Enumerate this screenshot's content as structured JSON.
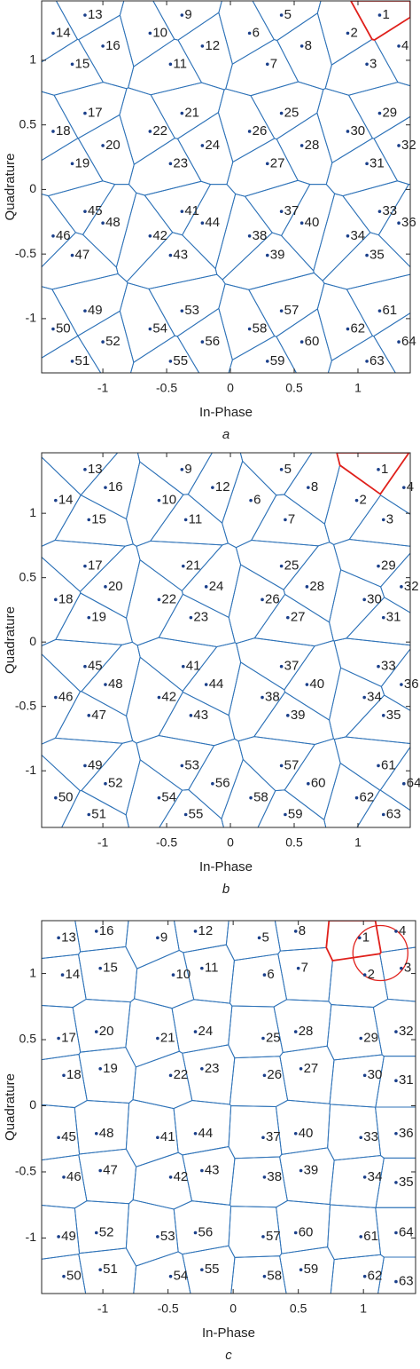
{
  "chart_data": [
    {
      "type": "scatter",
      "caption": "a",
      "xlabel": "In-Phase",
      "ylabel": "Quadrature",
      "xlim": [
        -1.48,
        1.41
      ],
      "ylim": [
        -1.42,
        1.46
      ],
      "xticks": [
        -1,
        -0.5,
        0,
        0.5,
        1
      ],
      "yticks": [
        -1,
        -0.5,
        0,
        0.5,
        1
      ],
      "cell_color": "#2f73b8",
      "marker_color": "#1a3f8a",
      "highlight_color": "#e0201b",
      "point_labels": [
        1,
        2,
        3,
        4,
        5,
        6,
        7,
        8,
        9,
        10,
        11,
        12,
        13,
        14,
        15,
        16,
        17,
        18,
        19,
        20,
        21,
        22,
        23,
        24,
        25,
        26,
        27,
        28,
        29,
        30,
        31,
        32,
        33,
        34,
        35,
        36,
        37,
        38,
        39,
        40,
        41,
        42,
        43,
        44,
        45,
        46,
        47,
        48,
        49,
        50,
        51,
        52,
        53,
        54,
        55,
        56,
        57,
        58,
        59,
        60,
        61,
        62,
        63,
        64
      ],
      "x": [
        1.17,
        0.92,
        1.07,
        1.32,
        0.4,
        0.15,
        0.29,
        0.56,
        -0.38,
        -0.63,
        -0.47,
        -0.22,
        -1.14,
        -1.39,
        -1.24,
        -1.0,
        -1.14,
        -1.39,
        -1.24,
        -1.0,
        -0.38,
        -0.63,
        -0.47,
        -0.22,
        0.4,
        0.15,
        0.29,
        0.56,
        1.17,
        0.92,
        1.07,
        1.32,
        1.17,
        0.92,
        1.07,
        1.32,
        0.4,
        0.15,
        0.29,
        0.56,
        -0.38,
        -0.63,
        -0.47,
        -0.22,
        -1.14,
        -1.39,
        -1.24,
        -1.0,
        -1.14,
        -1.39,
        -1.24,
        -1.0,
        -0.38,
        -0.63,
        -0.47,
        -0.22,
        0.4,
        0.15,
        0.29,
        0.56,
        1.17,
        0.92,
        1.07,
        1.32
      ],
      "y": [
        1.35,
        1.21,
        0.97,
        1.11,
        1.35,
        1.21,
        0.97,
        1.11,
        1.35,
        1.21,
        0.97,
        1.11,
        1.35,
        1.21,
        0.97,
        1.11,
        0.59,
        0.45,
        0.2,
        0.34,
        0.59,
        0.45,
        0.2,
        0.34,
        0.59,
        0.45,
        0.2,
        0.34,
        0.59,
        0.45,
        0.2,
        0.34,
        -0.17,
        -0.36,
        -0.51,
        -0.26,
        -0.17,
        -0.36,
        -0.51,
        -0.26,
        -0.17,
        -0.36,
        -0.51,
        -0.26,
        -0.17,
        -0.36,
        -0.51,
        -0.26,
        -0.94,
        -1.08,
        -1.33,
        -1.18,
        -0.94,
        -1.08,
        -1.33,
        -1.18,
        -0.94,
        -1.08,
        -1.33,
        -1.18,
        -0.94,
        -1.08,
        -1.33,
        -1.18
      ]
    },
    {
      "type": "scatter",
      "caption": "b",
      "xlabel": "In-Phase",
      "ylabel": "Quadrature",
      "xlim": [
        -1.48,
        1.41
      ],
      "ylim": [
        -1.44,
        1.47
      ],
      "xticks": [
        -1,
        -0.5,
        0,
        0.5,
        1
      ],
      "yticks": [
        -1,
        -0.5,
        0,
        0.5,
        1
      ],
      "cell_color": "#2f73b8",
      "marker_color": "#1a3f8a",
      "highlight_color": "#e0201b",
      "point_labels": [
        1,
        2,
        3,
        4,
        5,
        6,
        7,
        8,
        9,
        10,
        11,
        12,
        13,
        14,
        15,
        16,
        17,
        18,
        19,
        20,
        21,
        22,
        23,
        24,
        25,
        26,
        27,
        28,
        29,
        30,
        31,
        32,
        33,
        34,
        35,
        36,
        37,
        38,
        39,
        40,
        41,
        42,
        43,
        44,
        45,
        46,
        47,
        48,
        49,
        50,
        51,
        52,
        53,
        54,
        55,
        56,
        57,
        58,
        59,
        60,
        61,
        62,
        63,
        64
      ],
      "x": [
        1.16,
        0.99,
        1.2,
        1.36,
        0.4,
        0.16,
        0.43,
        0.61,
        -0.38,
        -0.56,
        -0.35,
        -0.14,
        -1.14,
        -1.37,
        -1.11,
        -0.98,
        -1.14,
        -1.37,
        -1.11,
        -0.98,
        -0.37,
        -0.56,
        -0.31,
        -0.19,
        0.4,
        0.25,
        0.45,
        0.6,
        1.16,
        1.05,
        1.2,
        1.34,
        1.16,
        1.05,
        1.2,
        1.34,
        0.4,
        0.25,
        0.45,
        0.6,
        -0.37,
        -0.56,
        -0.31,
        -0.19,
        -1.14,
        -1.37,
        -1.11,
        -0.98,
        -1.14,
        -1.37,
        -1.11,
        -0.98,
        -0.38,
        -0.56,
        -0.35,
        -0.14,
        0.4,
        0.16,
        0.43,
        0.61,
        1.16,
        0.99,
        1.2,
        1.36
      ],
      "y": [
        1.34,
        1.1,
        0.95,
        1.2,
        1.34,
        1.1,
        0.95,
        1.2,
        1.34,
        1.1,
        0.95,
        1.2,
        1.34,
        1.1,
        0.95,
        1.2,
        0.59,
        0.33,
        0.19,
        0.43,
        0.59,
        0.33,
        0.19,
        0.43,
        0.59,
        0.33,
        0.19,
        0.43,
        0.59,
        0.33,
        0.19,
        0.43,
        -0.19,
        -0.43,
        -0.57,
        -0.33,
        -0.19,
        -0.43,
        -0.57,
        -0.33,
        -0.19,
        -0.43,
        -0.57,
        -0.33,
        -0.19,
        -0.43,
        -0.57,
        -0.33,
        -0.96,
        -1.21,
        -1.34,
        -1.1,
        -0.96,
        -1.21,
        -1.34,
        -1.1,
        -0.96,
        -1.21,
        -1.34,
        -1.1,
        -0.96,
        -1.21,
        -1.34,
        -1.1
      ]
    },
    {
      "type": "scatter",
      "caption": "c",
      "xlabel": "In-Phase",
      "ylabel": "Quadrature",
      "xlim": [
        -1.47,
        1.4
      ],
      "ylim": [
        -1.42,
        1.4
      ],
      "xticks": [
        -1,
        -0.5,
        0,
        0.5,
        1
      ],
      "yticks": [
        -1,
        -0.5,
        0,
        0.5,
        1
      ],
      "cell_color": "#2f73b8",
      "marker_color": "#1a3f8a",
      "highlight_color": "#e0201b",
      "annotation_circle": true,
      "point_labels": [
        1,
        2,
        3,
        4,
        5,
        6,
        7,
        8,
        9,
        10,
        11,
        12,
        13,
        14,
        15,
        16,
        17,
        18,
        19,
        20,
        21,
        22,
        23,
        24,
        25,
        26,
        27,
        28,
        29,
        30,
        31,
        32,
        33,
        34,
        35,
        36,
        37,
        38,
        39,
        40,
        41,
        42,
        43,
        44,
        45,
        46,
        47,
        48,
        49,
        50,
        51,
        52,
        53,
        54,
        55,
        56,
        57,
        58,
        59,
        60,
        61,
        62,
        63,
        64
      ],
      "x": [
        0.97,
        1.01,
        1.29,
        1.25,
        0.2,
        0.24,
        0.5,
        0.48,
        -0.58,
        -0.46,
        -0.24,
        -0.29,
        -1.34,
        -1.31,
        -1.02,
        -1.05,
        -1.34,
        -1.3,
        -1.02,
        -1.05,
        -0.58,
        -0.48,
        -0.24,
        -0.29,
        0.23,
        0.24,
        0.52,
        0.48,
        0.98,
        1.01,
        1.25,
        1.25,
        0.98,
        1.01,
        1.25,
        1.25,
        0.23,
        0.24,
        0.52,
        0.48,
        -0.58,
        -0.48,
        -0.24,
        -0.29,
        -1.34,
        -1.3,
        -1.02,
        -1.05,
        -1.34,
        -1.3,
        -1.02,
        -1.05,
        -0.58,
        -0.48,
        -0.24,
        -0.29,
        0.23,
        0.24,
        0.52,
        0.48,
        0.98,
        1.01,
        1.25,
        1.25
      ],
      "y": [
        1.27,
        0.99,
        1.04,
        1.32,
        1.27,
        0.99,
        1.04,
        1.32,
        1.27,
        0.99,
        1.04,
        1.32,
        1.27,
        0.99,
        1.04,
        1.32,
        0.51,
        0.23,
        0.28,
        0.56,
        0.51,
        0.23,
        0.28,
        0.56,
        0.51,
        0.23,
        0.28,
        0.56,
        0.51,
        0.23,
        0.19,
        0.56,
        -0.24,
        -0.54,
        -0.58,
        -0.21,
        -0.24,
        -0.54,
        -0.49,
        -0.21,
        -0.24,
        -0.54,
        -0.49,
        -0.21,
        -0.24,
        -0.54,
        -0.49,
        -0.21,
        -0.99,
        -1.29,
        -1.24,
        -0.96,
        -0.99,
        -1.29,
        -1.24,
        -0.96,
        -0.99,
        -1.29,
        -1.24,
        -0.96,
        -0.99,
        -1.29,
        -1.33,
        -0.96
      ]
    }
  ]
}
